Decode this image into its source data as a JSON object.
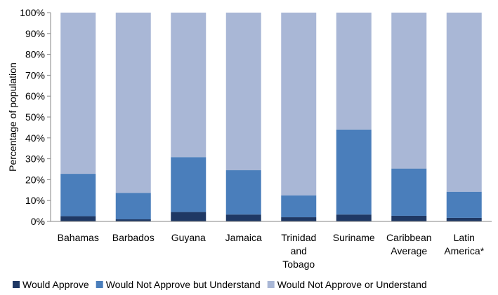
{
  "chart_data": {
    "type": "bar",
    "stacked": "percent",
    "categories": [
      "Bahamas",
      "Barbados",
      "Guyana",
      "Jamaica",
      "Trinidad and Tobago",
      "Suriname",
      "Caribbean Average",
      "Latin America*"
    ],
    "category_lines": [
      [
        "Bahamas"
      ],
      [
        "Barbados"
      ],
      [
        "Guyana"
      ],
      [
        "Jamaica"
      ],
      [
        "Trinidad",
        "and",
        "Tobago"
      ],
      [
        "Suriname"
      ],
      [
        "Caribbean",
        "Average"
      ],
      [
        "Latin",
        "America*"
      ]
    ],
    "series": [
      {
        "name": "Would Approve",
        "color": "#1f3864",
        "values": [
          2.5,
          1.0,
          4.5,
          3.3,
          2.0,
          3.3,
          2.7,
          1.7
        ]
      },
      {
        "name": "Would Not Approve but Understand",
        "color": "#4a7ebb",
        "values": [
          20.3,
          12.7,
          26.3,
          21.2,
          10.5,
          40.7,
          22.6,
          12.5
        ]
      },
      {
        "name": "Would Not Approve or Understand",
        "color": "#a9b7d6",
        "values": [
          77.2,
          86.3,
          69.2,
          75.5,
          87.5,
          56.0,
          74.7,
          85.8
        ]
      }
    ],
    "ylabel": "Percentage of population",
    "yticks": [
      "0%",
      "10%",
      "20%",
      "30%",
      "40%",
      "50%",
      "60%",
      "70%",
      "80%",
      "90%",
      "100%"
    ],
    "ylim": [
      0,
      100
    ],
    "grid": false,
    "legend_position": "bottom"
  }
}
